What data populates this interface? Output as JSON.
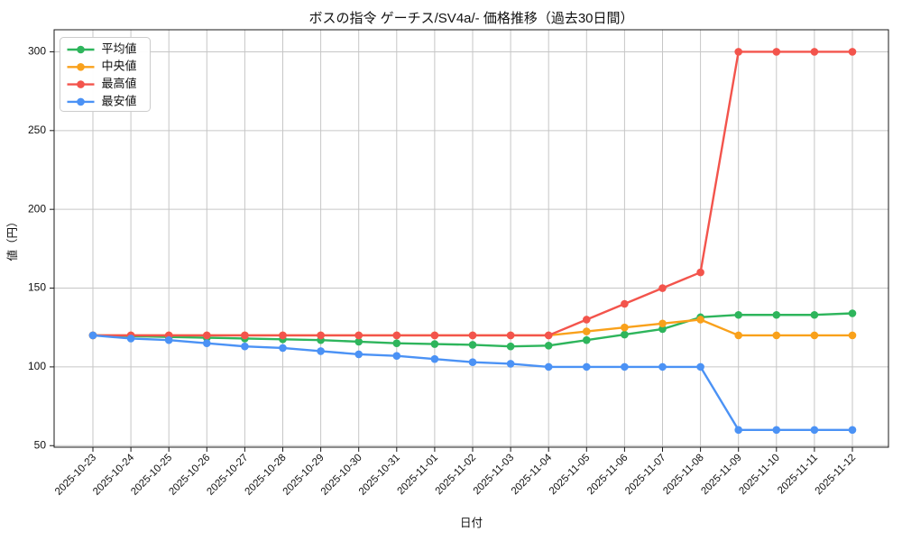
{
  "chart_data": {
    "type": "line",
    "title": "ボスの指令 ゲーチス/SV4a/- 価格推移（過去30日間）",
    "xlabel": "日付",
    "ylabel": "値（円）",
    "x": [
      "2025-10-23",
      "2025-10-24",
      "2025-10-25",
      "2025-10-26",
      "2025-10-27",
      "2025-10-28",
      "2025-10-29",
      "2025-10-30",
      "2025-10-31",
      "2025-11-01",
      "2025-11-02",
      "2025-11-03",
      "2025-11-04",
      "2025-11-05",
      "2025-11-06",
      "2025-11-07",
      "2025-11-08",
      "2025-11-09",
      "2025-11-10",
      "2025-11-11",
      "2025-11-12"
    ],
    "series": [
      {
        "key": "average",
        "name": "平均値",
        "color": "#2eb55c",
        "values": [
          120,
          119.5,
          119,
          118.5,
          118,
          117.5,
          117,
          116,
          115,
          114.5,
          114,
          113,
          113.5,
          117,
          120.5,
          124,
          131.5,
          133,
          133,
          133,
          134
        ]
      },
      {
        "key": "median",
        "name": "中央値",
        "color": "#f9a11b",
        "values": [
          120,
          120,
          120,
          120,
          120,
          120,
          120,
          120,
          120,
          120,
          120,
          120,
          120,
          122.5,
          125,
          127.5,
          130,
          120,
          120,
          120,
          120
        ]
      },
      {
        "key": "highest",
        "name": "最高値",
        "color": "#f3544c",
        "values": [
          120,
          120,
          120,
          120,
          120,
          120,
          120,
          120,
          120,
          120,
          120,
          120,
          120,
          130,
          140,
          150,
          160,
          300,
          300,
          300,
          300
        ]
      },
      {
        "key": "lowest",
        "name": "最安値",
        "color": "#4b92f5",
        "values": [
          120,
          118,
          117,
          115,
          113,
          112,
          110,
          108,
          107,
          105,
          103,
          102,
          100,
          100,
          100,
          100,
          100,
          60,
          60,
          60,
          60
        ]
      }
    ],
    "yticks": [
      50,
      100,
      150,
      200,
      250,
      300
    ],
    "ylim": [
      49,
      314
    ],
    "grid": true,
    "legend_position": "top-left",
    "colors": {
      "grid": "#c6c6c6",
      "axis": "#1a1a1a",
      "legend_border": "#cccccc",
      "background": "#ffffff"
    }
  }
}
